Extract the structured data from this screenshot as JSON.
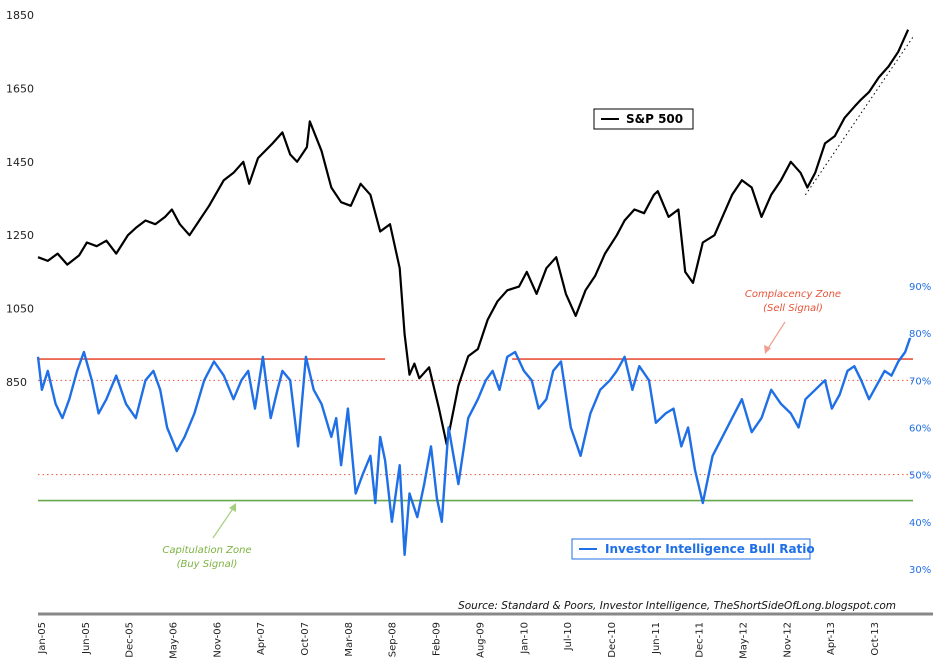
{
  "chart_data": {
    "type": "line",
    "title": "",
    "source": "Source: Standard & Poors, Investor Intelligence, TheShortSideOfLong.blogspot.com",
    "left_axis": {
      "ticks": [
        "1850",
        "1650",
        "1450",
        "1250",
        "1050",
        "850"
      ],
      "range": [
        850,
        1850
      ]
    },
    "right_axis": {
      "ticks": [
        "90%",
        "80%",
        "70%",
        "60%",
        "50%",
        "40%",
        "30%"
      ],
      "range": [
        30,
        90
      ],
      "unit": "%"
    },
    "x_ticks": [
      "Jan-05",
      "Jun-05",
      "Dec-05",
      "May-06",
      "Nov-06",
      "Apr-07",
      "Oct-07",
      "Mar-08",
      "Sep-08",
      "Feb-09",
      "Aug-09",
      "Jan-10",
      "Jul-10",
      "Dec-10",
      "Jun-11",
      "Dec-11",
      "May-12",
      "Nov-12",
      "Apr-13",
      "Oct-13"
    ],
    "x_range": [
      2005.0,
      2013.95
    ],
    "series": [
      {
        "name": "S&P 500",
        "axis": "left",
        "color": "#000000",
        "x": [
          2005.0,
          2005.1,
          2005.2,
          2005.3,
          2005.42,
          2005.5,
          2005.6,
          2005.7,
          2005.8,
          2005.92,
          2006.0,
          2006.1,
          2006.2,
          2006.3,
          2006.37,
          2006.45,
          2006.55,
          2006.65,
          2006.75,
          2006.9,
          2007.0,
          2007.1,
          2007.16,
          2007.25,
          2007.4,
          2007.5,
          2007.58,
          2007.65,
          2007.75,
          2007.78,
          2007.9,
          2008.0,
          2008.1,
          2008.2,
          2008.3,
          2008.4,
          2008.5,
          2008.6,
          2008.7,
          2008.75,
          2008.8,
          2008.85,
          2008.9,
          2009.0,
          2009.1,
          2009.18,
          2009.3,
          2009.4,
          2009.5,
          2009.6,
          2009.7,
          2009.8,
          2009.92,
          2010.0,
          2010.1,
          2010.2,
          2010.3,
          2010.4,
          2010.5,
          2010.6,
          2010.7,
          2010.8,
          2010.92,
          2011.0,
          2011.1,
          2011.2,
          2011.3,
          2011.34,
          2011.45,
          2011.55,
          2011.62,
          2011.7,
          2011.8,
          2011.92,
          2012.0,
          2012.1,
          2012.2,
          2012.3,
          2012.4,
          2012.5,
          2012.6,
          2012.7,
          2012.8,
          2012.87,
          2012.95,
          2013.05,
          2013.15,
          2013.25,
          2013.35,
          2013.42,
          2013.5,
          2013.6,
          2013.7,
          2013.8,
          2013.9
        ],
        "y": [
          1190,
          1180,
          1200,
          1170,
          1195,
          1230,
          1220,
          1235,
          1200,
          1250,
          1270,
          1290,
          1280,
          1300,
          1320,
          1280,
          1250,
          1290,
          1330,
          1400,
          1420,
          1450,
          1390,
          1460,
          1500,
          1530,
          1470,
          1450,
          1490,
          1560,
          1480,
          1380,
          1340,
          1330,
          1390,
          1360,
          1260,
          1280,
          1160,
          980,
          870,
          900,
          860,
          890,
          780,
          680,
          840,
          920,
          940,
          1020,
          1070,
          1100,
          1110,
          1150,
          1090,
          1160,
          1190,
          1090,
          1030,
          1100,
          1140,
          1200,
          1250,
          1290,
          1320,
          1310,
          1360,
          1370,
          1300,
          1320,
          1150,
          1120,
          1230,
          1250,
          1300,
          1360,
          1400,
          1380,
          1300,
          1360,
          1400,
          1450,
          1420,
          1380,
          1420,
          1500,
          1520,
          1570,
          1600,
          1620,
          1640,
          1680,
          1710,
          1750,
          1810
        ]
      },
      {
        "name": "Investor Intelligence Bull Ratio",
        "axis": "right",
        "color": "#1f6fe6",
        "x": [
          2005.0,
          2005.04,
          2005.1,
          2005.18,
          2005.25,
          2005.32,
          2005.4,
          2005.47,
          2005.55,
          2005.62,
          2005.7,
          2005.8,
          2005.9,
          2006.0,
          2006.1,
          2006.18,
          2006.25,
          2006.32,
          2006.42,
          2006.5,
          2006.6,
          2006.7,
          2006.8,
          2006.9,
          2007.0,
          2007.08,
          2007.15,
          2007.22,
          2007.3,
          2007.38,
          2007.45,
          2007.5,
          2007.58,
          2007.66,
          2007.74,
          2007.82,
          2007.9,
          2008.0,
          2008.05,
          2008.1,
          2008.17,
          2008.25,
          2008.32,
          2008.4,
          2008.45,
          2008.5,
          2008.55,
          2008.62,
          2008.7,
          2008.75,
          2008.8,
          2008.88,
          2008.95,
          2009.02,
          2009.08,
          2009.13,
          2009.2,
          2009.3,
          2009.4,
          2009.5,
          2009.58,
          2009.65,
          2009.72,
          2009.8,
          2009.88,
          2009.97,
          2010.05,
          2010.12,
          2010.2,
          2010.27,
          2010.35,
          2010.45,
          2010.55,
          2010.65,
          2010.75,
          2010.85,
          2010.92,
          2011.0,
          2011.08,
          2011.15,
          2011.25,
          2011.32,
          2011.42,
          2011.5,
          2011.58,
          2011.65,
          2011.72,
          2011.8,
          2011.9,
          2012.0,
          2012.1,
          2012.2,
          2012.3,
          2012.4,
          2012.5,
          2012.6,
          2012.7,
          2012.78,
          2012.85,
          2012.95,
          2013.05,
          2013.12,
          2013.2,
          2013.28,
          2013.35,
          2013.42,
          2013.5,
          2013.58,
          2013.66,
          2013.73,
          2013.8,
          2013.87,
          2013.92
        ],
        "y": [
          75,
          68,
          72,
          65,
          62,
          66,
          72,
          76,
          70,
          63,
          66,
          71,
          65,
          62,
          70,
          72,
          68,
          60,
          55,
          58,
          63,
          70,
          74,
          71,
          66,
          70,
          72,
          64,
          75,
          62,
          68,
          72,
          70,
          56,
          75,
          68,
          65,
          58,
          62,
          52,
          64,
          46,
          50,
          54,
          44,
          58,
          53,
          40,
          52,
          33,
          46,
          41,
          48,
          56,
          45,
          40,
          60,
          48,
          62,
          66,
          70,
          72,
          68,
          75,
          76,
          72,
          70,
          64,
          66,
          72,
          74,
          60,
          54,
          63,
          68,
          70,
          72,
          75,
          68,
          73,
          70,
          61,
          63,
          64,
          56,
          60,
          51,
          44,
          54,
          58,
          62,
          66,
          59,
          62,
          68,
          65,
          63,
          60,
          66,
          68,
          70,
          64,
          67,
          72,
          73,
          70,
          66,
          69,
          72,
          71,
          74,
          76,
          79
        ]
      }
    ],
    "reference_lines": [
      {
        "axis": "right",
        "value": 74.5,
        "style": "solid",
        "color": "#e8543a",
        "x_start": 2005.0,
        "x_end": 2008.55
      },
      {
        "axis": "right",
        "value": 74.5,
        "style": "solid",
        "color": "#e8543a",
        "x_start": 2009.85,
        "x_end": 2013.95
      },
      {
        "axis": "right",
        "value": 70,
        "style": "dotted",
        "color": "#e8543a"
      },
      {
        "axis": "right",
        "value": 50,
        "style": "dotted",
        "color": "#e8543a"
      },
      {
        "axis": "right",
        "value": 44.5,
        "style": "solid",
        "color": "#6aa84f"
      },
      {
        "axis": "left",
        "style": "dotted",
        "color": "#000000",
        "from": [
          2012.85,
          1360
        ],
        "to": [
          2013.95,
          1790
        ]
      }
    ],
    "annotations": [
      {
        "text": "Complacency Zone",
        "color": "#e8543a"
      },
      {
        "text": "(Sell Signal)",
        "color": "#e8543a"
      },
      {
        "text": "Capitulation Zone",
        "color": "#7cb342"
      },
      {
        "text": "(Buy Signal)",
        "color": "#7cb342"
      }
    ]
  }
}
